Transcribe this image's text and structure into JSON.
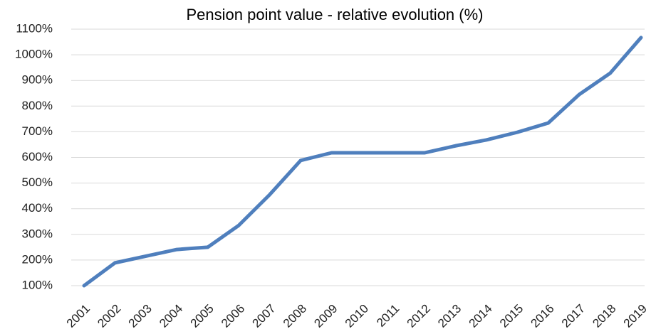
{
  "chart_data": {
    "type": "line",
    "title": "Pension point value - relative evolution (%)",
    "categories": [
      "2001",
      "2002",
      "2003",
      "2004",
      "2005",
      "2006",
      "2007",
      "2008",
      "2009",
      "2010",
      "2011",
      "2012",
      "2013",
      "2014",
      "2015",
      "2016",
      "2017",
      "2018",
      "2019"
    ],
    "series": [
      {
        "name": "Pension point value",
        "color": "#4f7fbd",
        "values": [
          100,
          189,
          215,
          241,
          250,
          335,
          455,
          588,
          618,
          618,
          618,
          618,
          645,
          668,
          698,
          734,
          845,
          928,
          1067
        ]
      }
    ],
    "ylim": [
      100,
      1100
    ],
    "yticks": [
      {
        "value": 100,
        "label": "100%"
      },
      {
        "value": 200,
        "label": "200%"
      },
      {
        "value": 300,
        "label": "300%"
      },
      {
        "value": 400,
        "label": "400%"
      },
      {
        "value": 500,
        "label": "500%"
      },
      {
        "value": 600,
        "label": "600%"
      },
      {
        "value": 700,
        "label": "700%"
      },
      {
        "value": 800,
        "label": "800%"
      },
      {
        "value": 900,
        "label": "900%"
      },
      {
        "value": 1000,
        "label": "1000%"
      },
      {
        "value": 1100,
        "label": "1100%"
      }
    ],
    "grid": true
  }
}
